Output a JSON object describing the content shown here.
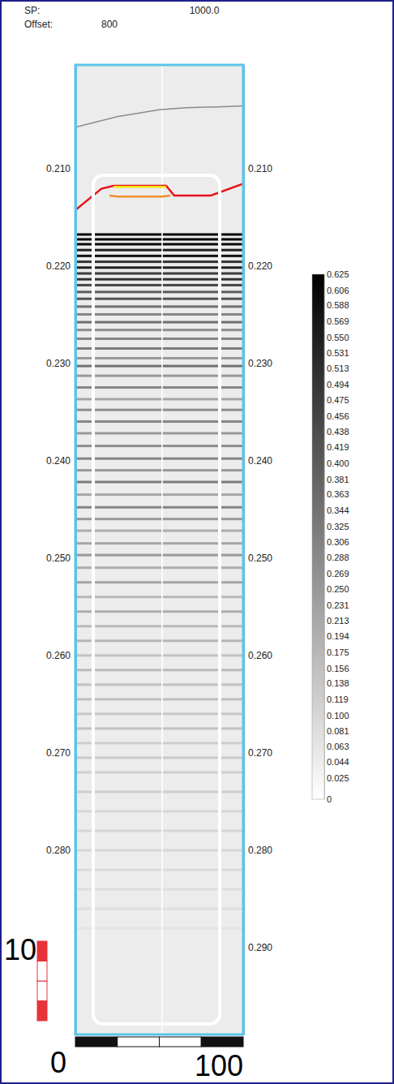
{
  "chart_data": {
    "type": "seismic_section",
    "header": {
      "sp_label": "SP:",
      "sp_value": "1000.0",
      "offset_label": "Offset:",
      "offset_value": "800"
    },
    "xlim": [
      0,
      100
    ],
    "ylim": [
      0.1994,
      0.2989
    ],
    "yticks": [
      {
        "value": 0.21,
        "label": "0.210"
      },
      {
        "value": 0.22,
        "label": "0.220"
      },
      {
        "value": 0.23,
        "label": "0.230"
      },
      {
        "value": 0.24,
        "label": "0.240"
      },
      {
        "value": 0.25,
        "label": "0.250"
      },
      {
        "value": 0.26,
        "label": "0.260"
      },
      {
        "value": 0.27,
        "label": "0.270"
      },
      {
        "value": 0.28,
        "label": "0.280"
      },
      {
        "value": 0.29,
        "label": "0.290"
      }
    ],
    "reflectors": {
      "times": [
        0.2168,
        0.2173,
        0.2178,
        0.2184,
        0.219,
        0.2196,
        0.2202,
        0.2208,
        0.2214,
        0.222,
        0.2227,
        0.2234,
        0.2242,
        0.225,
        0.2258,
        0.2266,
        0.2275,
        0.2285,
        0.2295,
        0.2303,
        0.2313,
        0.2325,
        0.2337,
        0.2348,
        0.236,
        0.2372,
        0.2385,
        0.2398,
        0.241,
        0.2422,
        0.2435,
        0.2448,
        0.246,
        0.2472,
        0.2485,
        0.2497,
        0.251,
        0.2525,
        0.254,
        0.2555,
        0.257,
        0.2585,
        0.26,
        0.2615,
        0.263,
        0.2645,
        0.266,
        0.2675,
        0.269,
        0.2705,
        0.272,
        0.274,
        0.276,
        0.278,
        0.28,
        0.282,
        0.284,
        0.286,
        0.288
      ],
      "amplitudes": [
        0.6,
        0.62,
        0.6,
        0.55,
        0.58,
        0.5,
        0.55,
        0.48,
        0.5,
        0.45,
        0.4,
        0.42,
        0.35,
        0.3,
        0.35,
        0.28,
        0.3,
        0.32,
        0.25,
        0.35,
        0.25,
        0.3,
        0.22,
        0.28,
        0.3,
        0.25,
        0.28,
        0.3,
        0.25,
        0.32,
        0.22,
        0.3,
        0.25,
        0.2,
        0.22,
        0.25,
        0.2,
        0.22,
        0.18,
        0.2,
        0.17,
        0.18,
        0.15,
        0.17,
        0.15,
        0.16,
        0.14,
        0.15,
        0.12,
        0.13,
        0.12,
        0.12,
        0.1,
        0.1,
        0.1,
        0.09,
        0.08,
        0.08,
        0.07
      ]
    },
    "horizons": [
      {
        "color": "#8c8c8c",
        "x": [
          0,
          25,
          50,
          66,
          85,
          100
        ],
        "values": [
          0.2058,
          0.2047,
          0.204,
          0.2038,
          0.2037,
          0.2036
        ]
      },
      {
        "color": "#e8131b",
        "x": [
          0,
          15.5,
          22.7,
          54.1,
          58.9,
          80.7,
          100
        ],
        "values": [
          0.2143,
          0.2121,
          0.2118,
          0.2118,
          0.2128,
          0.2128,
          0.2116
        ]
      },
      {
        "color": "#f2e600",
        "x": [
          22.7,
          54.1
        ],
        "values": [
          0.2119,
          0.2119
        ]
      },
      {
        "color": "#f0902a",
        "x": [
          20.3,
          25.1,
          51.7,
          56.5
        ],
        "values": [
          0.2128,
          0.2129,
          0.2129,
          0.2128
        ]
      }
    ],
    "colorbar": {
      "range": [
        0,
        0.625
      ],
      "ticks": [
        0.625,
        0.606,
        0.588,
        0.569,
        {
          "value": 0.55,
          "label": "0.550"
        },
        0.531,
        0.513,
        0.494,
        0.475,
        0.456,
        0.438,
        0.419,
        {
          "value": 0.4,
          "label": "0.400"
        },
        0.381,
        0.363,
        0.344,
        0.325,
        0.306,
        0.288,
        0.269,
        {
          "value": 0.25,
          "label": "0.250"
        },
        0.231,
        0.213,
        0.194,
        0.175,
        0.156,
        0.138,
        0.119,
        {
          "value": 0.1,
          "label": "0.100"
        },
        0.081,
        0.063,
        0.044,
        0.025,
        0
      ]
    },
    "scale_bar": {
      "origin": 0,
      "vertical_end": 10,
      "horizontal_end": 100
    }
  }
}
